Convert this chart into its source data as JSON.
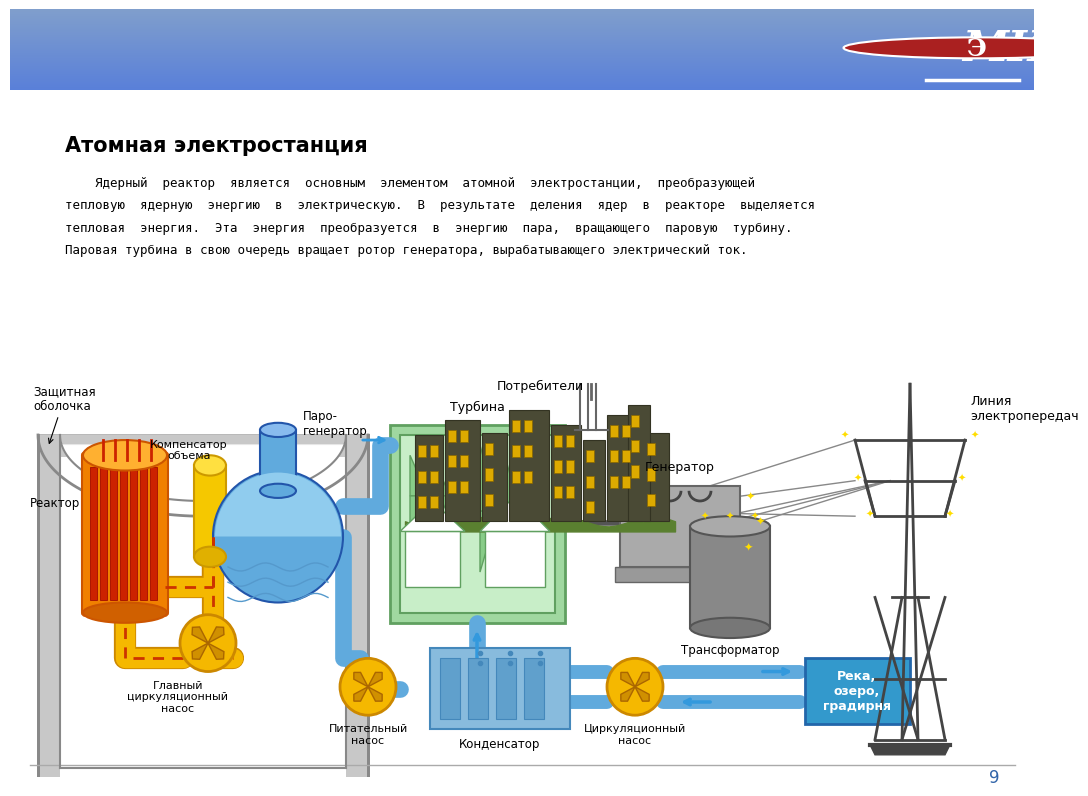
{
  "title": "Атомная электростанция",
  "header_color_top": "#5B9BD5",
  "header_color_bot": "#4472C4",
  "page_number": "9",
  "description_lines": [
    "    Ядерный  реактор  является  основным  элементом  атомной  электростанции,  преобразующей",
    "тепловую  ядерную  энергию  в  электрическую.  В  результате  деления  ядер  в  реакторе  выделяется",
    "тепловая  энергия.  Эта  энергия  преобразуется  в  энергию  пара,  вращающего  паровую  турбину.",
    "Паровая турбина в свою очередь вращает ротор генератора, вырабатывающего электрический ток."
  ],
  "labels": {
    "zashchitnaya": "Защитная\nоболочка",
    "kompensator": "Компенсатор\nобъема",
    "paro_gen": "Паро-\nгенератор",
    "reaktor": "Реактор",
    "glavny": "Главный\nциркуляционный\nнасос",
    "turbina": "Турбина",
    "generator": "Генератор",
    "transformator": "Трансформатор",
    "pitatelny": "Питательный\nнасос",
    "kondensator": "Конденсатор",
    "tsirk": "Циркуляционный\nнасос",
    "potrebiteli": "Потребители",
    "liniya": "Линия\nэлектропередач",
    "reka": "Река,\nозеро,\nградирня"
  },
  "colors": {
    "containment_fill": "#C8C8C8",
    "containment_edge": "#888888",
    "reactor_body": "#F08000",
    "reactor_top": "#FFB020",
    "reactor_rods": "#CC3300",
    "kompens_body": "#F5C800",
    "kompens_top": "#FFE040",
    "pg_body": "#60AADD",
    "pg_water": "#88CCEE",
    "primary_pipe": "#F5B800",
    "primary_pipe_edge": "#CC8800",
    "secondary_pipe": "#60AADD",
    "turbine_outer": "#A0D8A0",
    "turbine_inner": "#C8EEC8",
    "turbine_edge": "#60A060",
    "generator_fill": "#AAAAAA",
    "transformer_fill": "#888888",
    "transformer_top": "#AAAAAA",
    "condenser_fill": "#80BBDD",
    "condenser_edge": "#4488BB",
    "pump_fill": "#F5B800",
    "pump_edge": "#CC8800",
    "river_fill": "#3399CC",
    "river_edge": "#2266AA",
    "building_fill": "#555555",
    "window_fill": "#CCAA00",
    "tower_color": "#444444",
    "pipe_blue": "#60AADD",
    "pipe_yellow": "#F5B800",
    "arrow_blue": "#3399DD"
  }
}
